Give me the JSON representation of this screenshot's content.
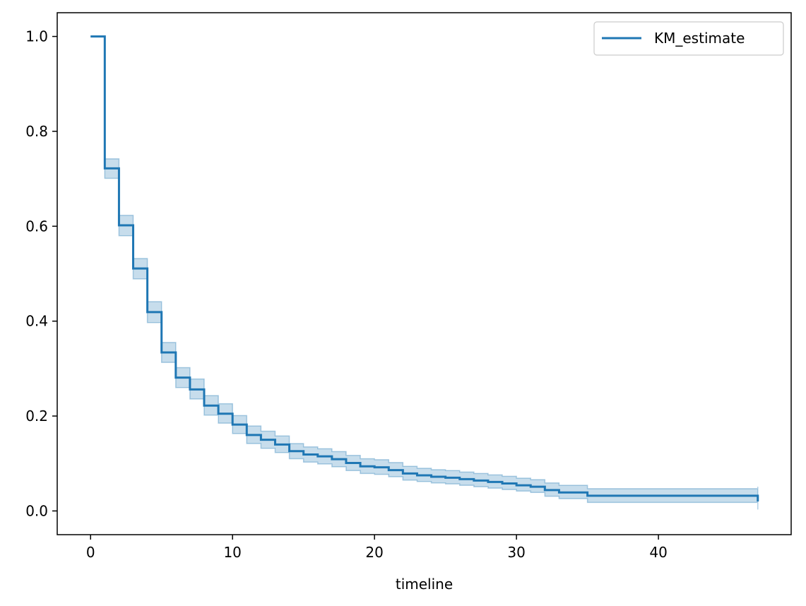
{
  "chart_data": {
    "type": "line",
    "title": "",
    "xlabel": "timeline",
    "ylabel": "",
    "xlim": [
      -2.35,
      49.35
    ],
    "ylim": [
      -0.05,
      1.05
    ],
    "xticks": [
      0,
      10,
      20,
      30,
      40
    ],
    "yticks": [
      0.0,
      0.2,
      0.4,
      0.6,
      0.8,
      1.0
    ],
    "xtick_labels": [
      "0",
      "10",
      "20",
      "30",
      "40"
    ],
    "ytick_labels": [
      "0.0",
      "0.2",
      "0.4",
      "0.6",
      "0.8",
      "1.0"
    ],
    "grid": false,
    "legend_position": "top-right",
    "colors": {
      "line": "#1f77b4",
      "band": "#1f77b4"
    },
    "series": [
      {
        "name": "KM_estimate",
        "drawstyle": "steps-post",
        "x": [
          0,
          1,
          2,
          3,
          4,
          5,
          6,
          7,
          8,
          9,
          10,
          11,
          12,
          13,
          14,
          15,
          16,
          17,
          18,
          19,
          20,
          21,
          22,
          23,
          24,
          25,
          26,
          27,
          28,
          29,
          30,
          31,
          32,
          33,
          35,
          47
        ],
        "y": [
          1.0,
          0.722,
          0.602,
          0.511,
          0.419,
          0.334,
          0.281,
          0.256,
          0.222,
          0.205,
          0.182,
          0.16,
          0.15,
          0.14,
          0.126,
          0.119,
          0.115,
          0.109,
          0.101,
          0.094,
          0.092,
          0.086,
          0.079,
          0.075,
          0.072,
          0.07,
          0.067,
          0.064,
          0.061,
          0.058,
          0.054,
          0.051,
          0.044,
          0.039,
          0.032,
          0.02
        ],
        "ci_lower": [
          1.0,
          0.701,
          0.58,
          0.489,
          0.397,
          0.313,
          0.26,
          0.236,
          0.202,
          0.185,
          0.163,
          0.142,
          0.132,
          0.123,
          0.11,
          0.103,
          0.099,
          0.093,
          0.085,
          0.079,
          0.077,
          0.072,
          0.065,
          0.062,
          0.059,
          0.057,
          0.054,
          0.051,
          0.048,
          0.045,
          0.042,
          0.039,
          0.031,
          0.026,
          0.018,
          0.003
        ],
        "ci_upper": [
          1.0,
          0.742,
          0.623,
          0.532,
          0.441,
          0.355,
          0.302,
          0.278,
          0.243,
          0.226,
          0.201,
          0.179,
          0.168,
          0.158,
          0.142,
          0.135,
          0.131,
          0.125,
          0.117,
          0.11,
          0.108,
          0.102,
          0.094,
          0.09,
          0.087,
          0.085,
          0.082,
          0.079,
          0.076,
          0.073,
          0.069,
          0.066,
          0.059,
          0.054,
          0.047,
          0.051
        ]
      }
    ]
  }
}
